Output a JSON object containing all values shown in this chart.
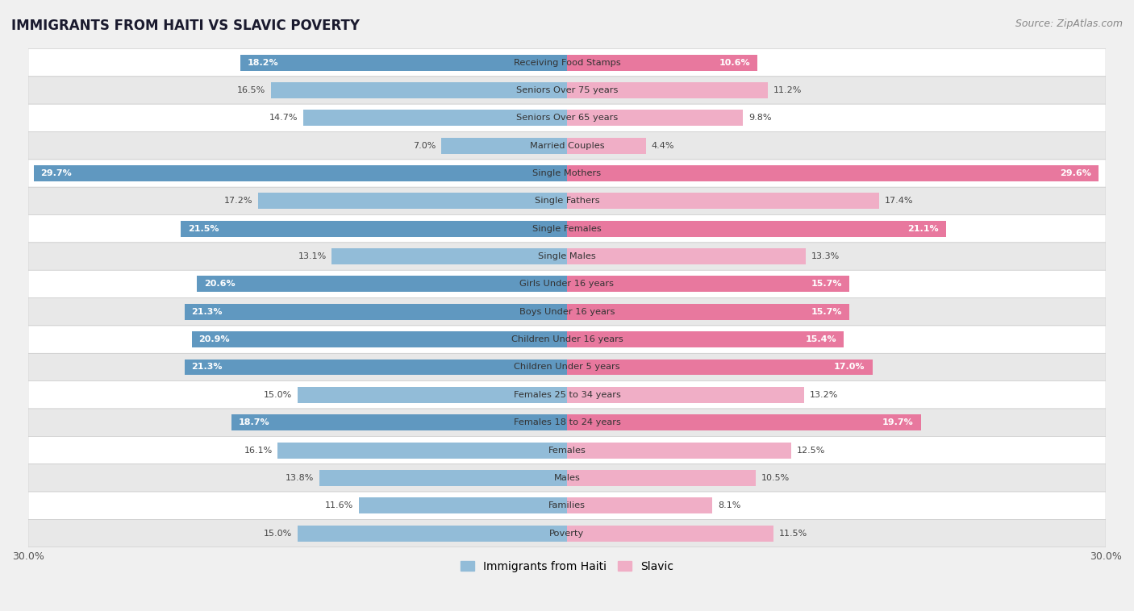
{
  "title": "IMMIGRANTS FROM HAITI VS SLAVIC POVERTY",
  "source": "Source: ZipAtlas.com",
  "categories": [
    "Poverty",
    "Families",
    "Males",
    "Females",
    "Females 18 to 24 years",
    "Females 25 to 34 years",
    "Children Under 5 years",
    "Children Under 16 years",
    "Boys Under 16 years",
    "Girls Under 16 years",
    "Single Males",
    "Single Females",
    "Single Fathers",
    "Single Mothers",
    "Married Couples",
    "Seniors Over 65 years",
    "Seniors Over 75 years",
    "Receiving Food Stamps"
  ],
  "haiti_values": [
    15.0,
    11.6,
    13.8,
    16.1,
    18.7,
    15.0,
    21.3,
    20.9,
    21.3,
    20.6,
    13.1,
    21.5,
    17.2,
    29.7,
    7.0,
    14.7,
    16.5,
    18.2
  ],
  "slavic_values": [
    11.5,
    8.1,
    10.5,
    12.5,
    19.7,
    13.2,
    17.0,
    15.4,
    15.7,
    15.7,
    13.3,
    21.1,
    17.4,
    29.6,
    4.4,
    9.8,
    11.2,
    10.6
  ],
  "haiti_color_normal": "#92bcd8",
  "haiti_color_highlight": "#6098c0",
  "slavic_color_normal": "#f0aec6",
  "slavic_color_highlight": "#e8789e",
  "background_color": "#f0f0f0",
  "row_color_white": "#ffffff",
  "row_color_gray": "#e8e8e8",
  "axis_limit": 30.0,
  "bar_height": 0.58,
  "legend_haiti": "Immigrants from Haiti",
  "legend_slavic": "Slavic",
  "highlight_rows": [
    4,
    6,
    7,
    8,
    9,
    11,
    13,
    17
  ]
}
